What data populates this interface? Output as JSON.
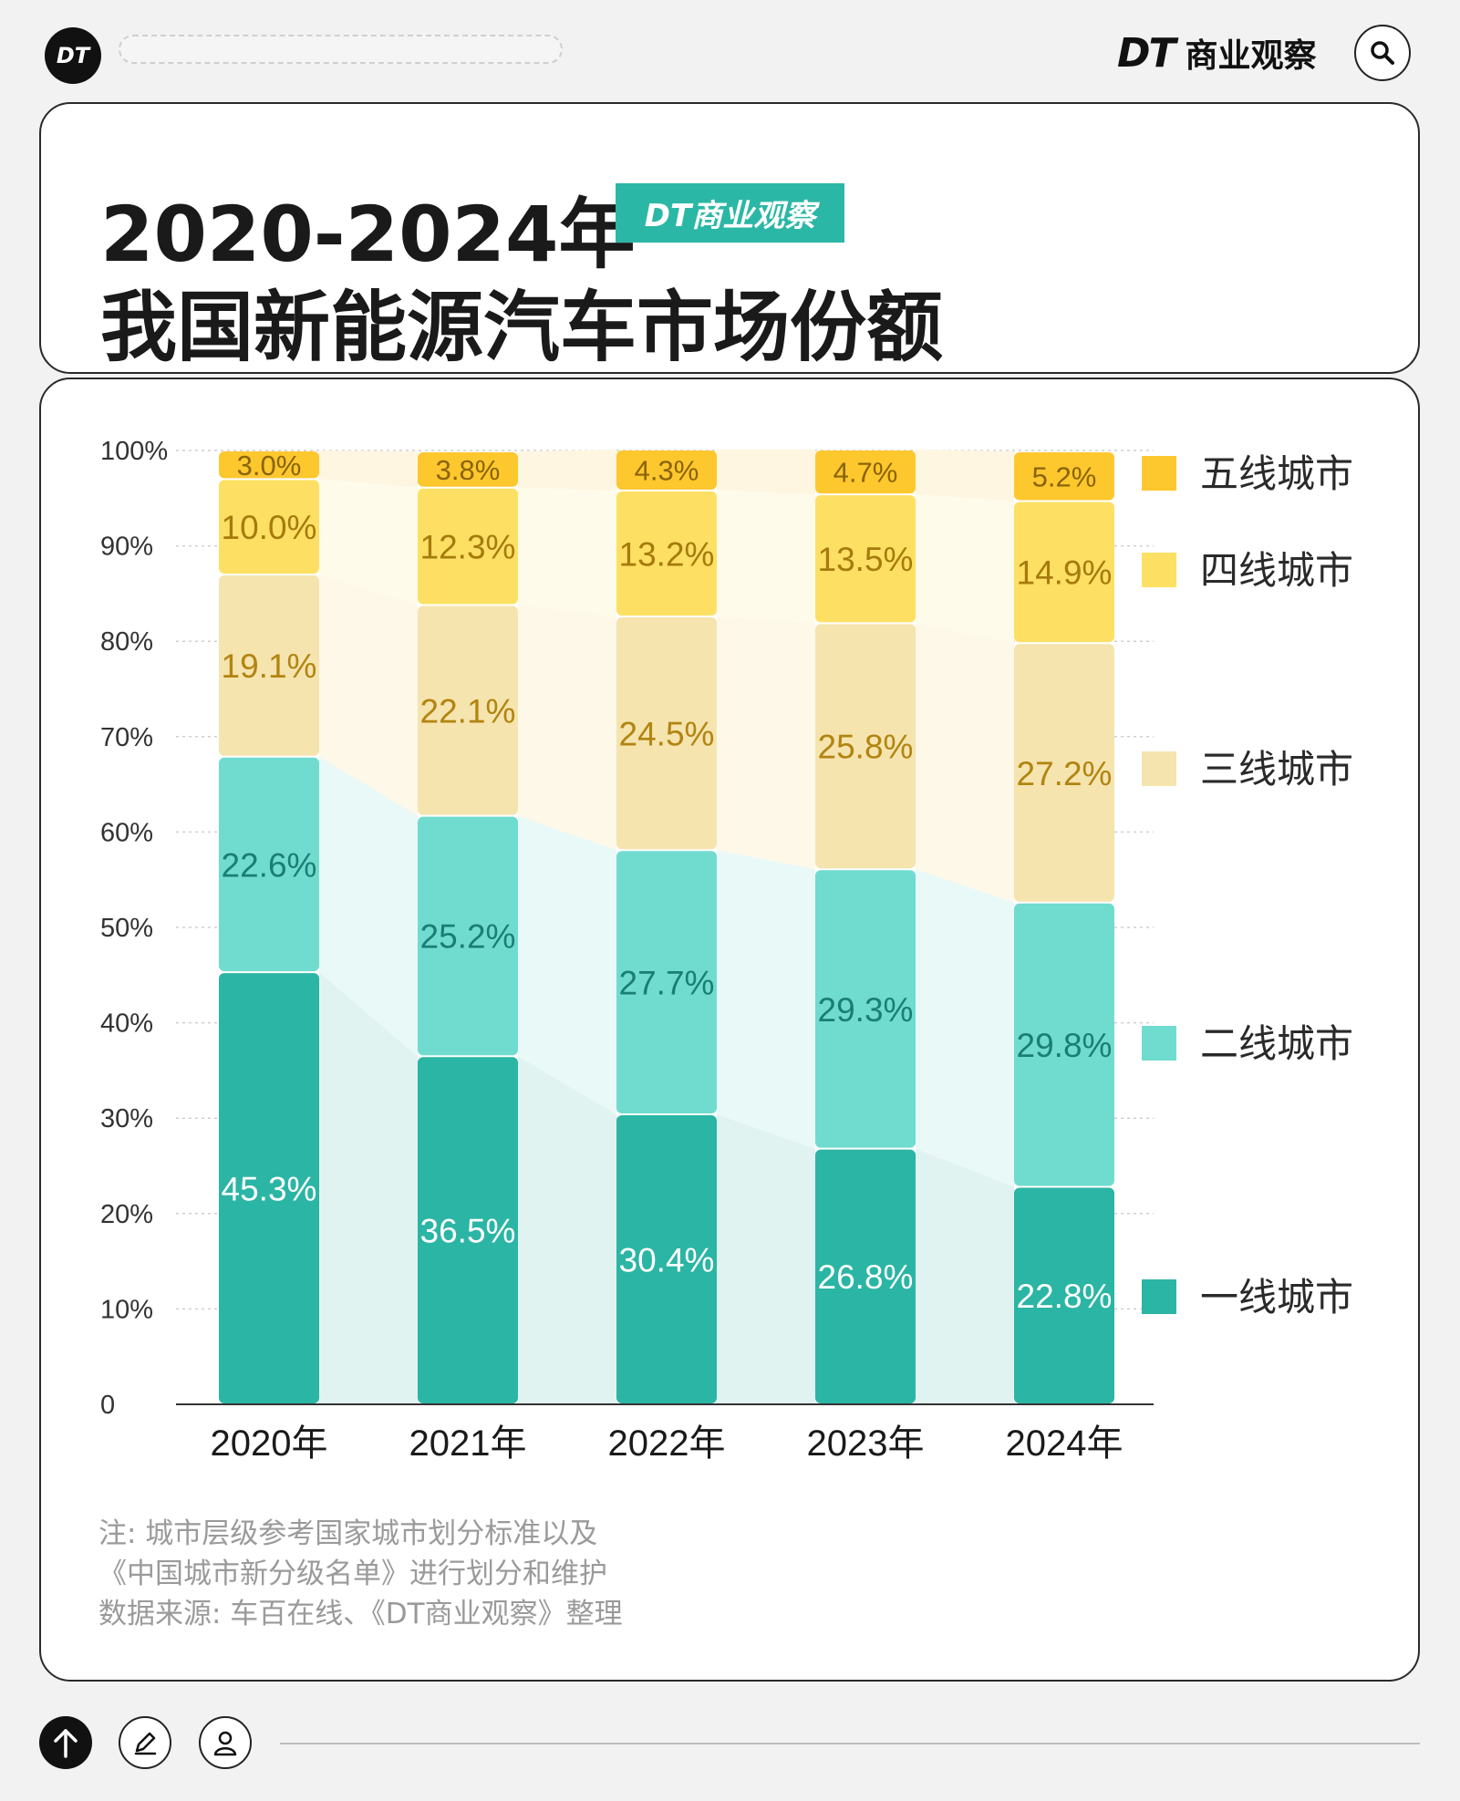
{
  "header": {
    "logo_text": "DT",
    "brand_mark": "DT",
    "brand_name": "商业观察",
    "search_icon": "search-icon"
  },
  "title": {
    "line1": "2020-2024年",
    "badge": "DT商业观察",
    "line2": "我国新能源汽车市场份额"
  },
  "chart_data": {
    "type": "bar",
    "stacked": true,
    "categories": [
      "2020年",
      "2021年",
      "2022年",
      "2023年",
      "2024年"
    ],
    "y_ticks": [
      "0",
      "10%",
      "20%",
      "30%",
      "40%",
      "50%",
      "60%",
      "70%",
      "80%",
      "90%",
      "100%"
    ],
    "ylim": [
      0,
      100
    ],
    "series": [
      {
        "name": "一线城市",
        "color": "#2bb5a4",
        "label_color": "#ffffff",
        "values": [
          45.3,
          36.5,
          30.4,
          26.8,
          22.8
        ],
        "labels": [
          "45.3%",
          "36.5%",
          "30.4%",
          "26.8%",
          "22.8%"
        ]
      },
      {
        "name": "二线城市",
        "color": "#70dccf",
        "label_color": "#1a7e74",
        "values": [
          22.6,
          25.2,
          27.7,
          29.3,
          29.8
        ],
        "labels": [
          "22.6%",
          "25.2%",
          "27.7%",
          "29.3%",
          "29.8%"
        ]
      },
      {
        "name": "三线城市",
        "color": "#f5e4ae",
        "label_color": "#b28410",
        "values": [
          19.1,
          22.1,
          24.5,
          25.8,
          27.2
        ],
        "labels": [
          "19.1%",
          "22.1%",
          "24.5%",
          "25.8%",
          "27.2%"
        ]
      },
      {
        "name": "四线城市",
        "color": "#fde063",
        "label_color": "#a67a0c",
        "values": [
          10.0,
          12.3,
          13.2,
          13.5,
          14.9
        ],
        "labels": [
          "10.0%",
          "12.3%",
          "13.2%",
          "13.5%",
          "14.9%"
        ]
      },
      {
        "name": "五线城市",
        "color": "#fdc72e",
        "label_color": "#8a6408",
        "values": [
          3.0,
          3.8,
          4.3,
          4.7,
          5.2
        ],
        "labels": [
          "3.0%",
          "3.8%",
          "4.3%",
          "4.7%",
          "5.2%"
        ]
      }
    ],
    "legend_position": "right",
    "grid": true
  },
  "notes": {
    "line1": "注: 城市层级参考国家城市划分标准以及",
    "line2": "《中国城市新分级名单》进行划分和维护",
    "line3": "数据来源: 车百在线、《DT商业观察》整理"
  },
  "footer": {
    "up_icon": "arrow-up-icon",
    "edit_icon": "pencil-icon",
    "user_icon": "user-icon"
  }
}
